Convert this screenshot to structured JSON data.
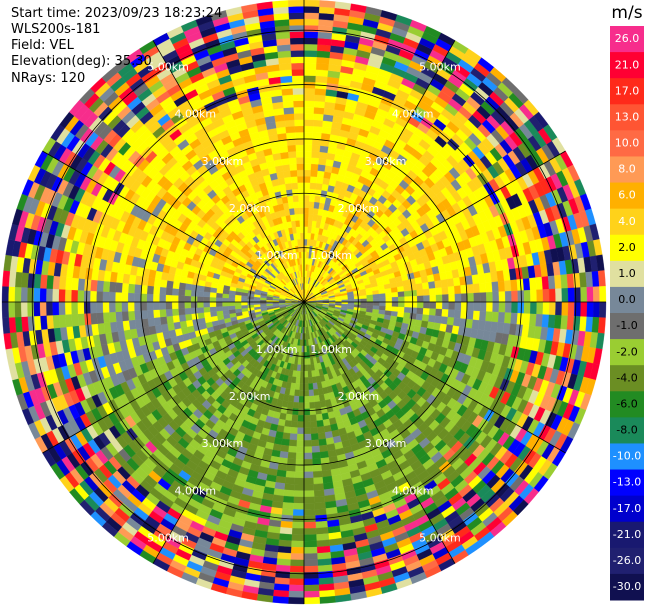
{
  "info": {
    "start_time": "Start time: 2023/09/23 18:23:24",
    "station": "WLS200s-181",
    "field": "Field: VEL",
    "elevation": "Elevation(deg): 35.30",
    "nrays": "NRays: 120"
  },
  "colorbar": {
    "unit": "m/s",
    "bins": [
      {
        "label": "26.0",
        "color": "#f72d8c"
      },
      {
        "label": "21.0",
        "color": "#ff0033"
      },
      {
        "label": "17.0",
        "color": "#ff2a1a"
      },
      {
        "label": "13.0",
        "color": "#ff5533"
      },
      {
        "label": "10.0",
        "color": "#ff6a44"
      },
      {
        "label": "8.0",
        "color": "#ff9a55"
      },
      {
        "label": "6.0",
        "color": "#ffb000"
      },
      {
        "label": "4.0",
        "color": "#ffd21a"
      },
      {
        "label": "2.0",
        "color": "#ffff00"
      },
      {
        "label": "1.0",
        "color": "#e0e0a0"
      },
      {
        "label": "0.0",
        "color": "#778899"
      },
      {
        "label": "-1.0",
        "color": "#6e6e6e"
      },
      {
        "label": "-2.0",
        "color": "#9acd32"
      },
      {
        "label": "-4.0",
        "color": "#6b8e23"
      },
      {
        "label": "-6.0",
        "color": "#228b22"
      },
      {
        "label": "-8.0",
        "color": "#1a8a5a"
      },
      {
        "label": "-10.0",
        "color": "#1e90ff"
      },
      {
        "label": "-13.0",
        "color": "#0000ff"
      },
      {
        "label": "-17.0",
        "color": "#0000cd"
      },
      {
        "label": "-21.0",
        "color": "#191970"
      },
      {
        "label": "-26.0",
        "color": "#202070"
      },
      {
        "label": "-30.0",
        "color": "#101050"
      }
    ]
  },
  "chart_data": {
    "type": "polar-ppi",
    "nrays": 120,
    "range_rings": [
      {
        "label": "1.00km"
      },
      {
        "label": "2.00km"
      },
      {
        "label": "3.00km"
      },
      {
        "label": "4.00km"
      },
      {
        "label": "5.00km"
      }
    ],
    "spokes_deg": [
      0,
      30,
      60,
      90,
      120,
      150,
      180,
      210,
      240,
      270,
      300,
      330
    ],
    "ring_label_bearings_deg": [
      30,
      150,
      210,
      330
    ],
    "dominant_field": {
      "north_sector": "2.0 to 6.0 m/s (yellow/orange)",
      "south_sector": "-2.0 to -4.0 m/s (green)",
      "transition": "0.0 to -1.0 m/s (grey)",
      "outer_ranges": "noisy, full colour range"
    }
  }
}
